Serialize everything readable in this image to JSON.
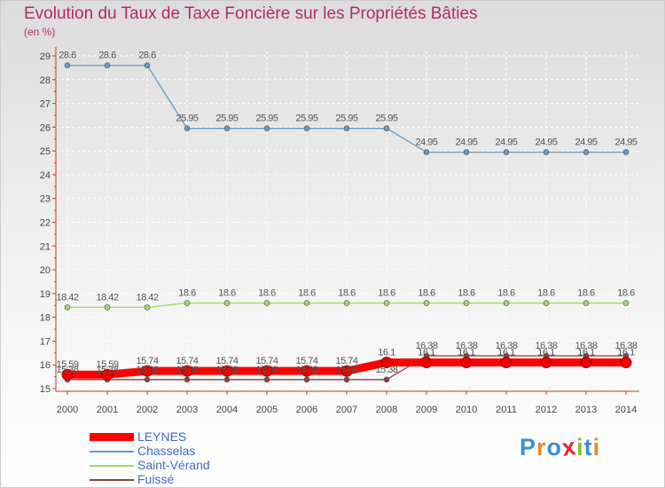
{
  "title": "Evolution du Taux de Taxe Foncière sur les Propriétés Bâties",
  "unit_label": "(en %)",
  "logo": {
    "text": "Proxiti",
    "letter_colors": [
      "#3b8fd8",
      "#e8862a",
      "#3b8fd8",
      "#e22828",
      "#8cbf2a",
      "#3b8fd8",
      "#e8862a"
    ]
  },
  "chart_data": {
    "type": "line",
    "title": "Evolution du Taux de Taxe Foncière sur les Propriétés Bâties",
    "ylabel": "(en %)",
    "xlabel": "",
    "grid": true,
    "legend_position": "bottom-left",
    "x": [
      "2000",
      "2001",
      "2002",
      "2003",
      "2004",
      "2005",
      "2006",
      "2007",
      "2008",
      "2009",
      "2010",
      "2011",
      "2012",
      "2013",
      "2014"
    ],
    "y_ticks": [
      "15",
      "16",
      "17",
      "18",
      "19",
      "20",
      "21",
      "22",
      "23",
      "24",
      "25",
      "26",
      "27",
      "28",
      "29"
    ],
    "ylim": [
      15,
      29
    ],
    "series": [
      {
        "name": "LEYNES",
        "color": "#ff0000",
        "thick": true,
        "values": [
          15.59,
          15.59,
          15.74,
          15.74,
          15.74,
          15.74,
          15.74,
          15.74,
          16.1,
          16.1,
          16.1,
          16.1,
          16.1,
          16.1,
          16.1
        ],
        "labels": [
          "15.59",
          "15.59",
          "15.74",
          "15.74",
          "15.74",
          "15.74",
          "15.74",
          "15.74",
          "16.1",
          "16.1",
          "16.1",
          "16.1",
          "16.1",
          "16.1",
          "16.1"
        ]
      },
      {
        "name": "Chasselas",
        "color": "#6699cc",
        "thick": false,
        "values": [
          28.6,
          28.6,
          28.6,
          25.95,
          25.95,
          25.95,
          25.95,
          25.95,
          25.95,
          24.95,
          24.95,
          24.95,
          24.95,
          24.95,
          24.95
        ],
        "labels": [
          "28.6",
          "28.6",
          "28.6",
          "25.95",
          "25.95",
          "25.95",
          "25.95",
          "25.95",
          "25.95",
          "24.95",
          "24.95",
          "24.95",
          "24.95",
          "24.95",
          "24.95"
        ]
      },
      {
        "name": "Saint-Vérand",
        "color": "#99dd66",
        "thick": false,
        "values": [
          18.42,
          18.42,
          18.42,
          18.6,
          18.6,
          18.6,
          18.6,
          18.6,
          18.6,
          18.6,
          18.6,
          18.6,
          18.6,
          18.6,
          18.6
        ],
        "labels": [
          "18.42",
          "18.42",
          "18.42",
          "18.6",
          "18.6",
          "18.6",
          "18.6",
          "18.6",
          "18.6",
          "18.6",
          "18.6",
          "18.6",
          "18.6",
          "18.6",
          "18.6"
        ]
      },
      {
        "name": "Fuissé",
        "color": "#884444",
        "thick": false,
        "values": [
          15.38,
          15.38,
          15.38,
          15.38,
          15.38,
          15.38,
          15.38,
          15.38,
          15.38,
          16.38,
          16.38,
          16.38,
          16.38,
          16.38,
          16.38
        ],
        "labels": [
          "15.38",
          "15.38",
          "15.38",
          "15.38",
          "15.38",
          "15.38",
          "15.38",
          "15.38",
          "15.38",
          "16.38",
          "16.38",
          "16.38",
          "16.38",
          "16.38",
          "16.38"
        ]
      }
    ]
  }
}
